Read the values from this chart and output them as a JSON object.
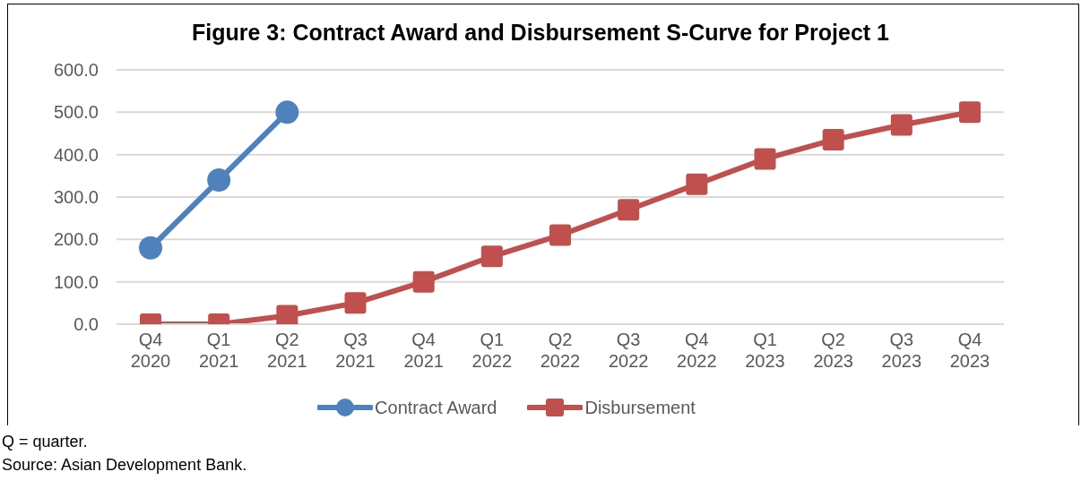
{
  "chart_data": {
    "type": "line",
    "title": "Figure 3: Contract Award and Disbursement S-Curve for Project 1",
    "categories": [
      "Q4\n2020",
      "Q1\n2021",
      "Q2\n2021",
      "Q3\n2021",
      "Q4\n2021",
      "Q1\n2022",
      "Q2\n2022",
      "Q3\n2022",
      "Q4\n2022",
      "Q1\n2023",
      "Q2\n2023",
      "Q3\n2023",
      "Q4\n2023"
    ],
    "series": [
      {
        "name": "Contract Award",
        "color": "#4f81bd",
        "marker": "circle",
        "values": [
          180,
          340,
          500,
          null,
          null,
          null,
          null,
          null,
          null,
          null,
          null,
          null,
          null
        ]
      },
      {
        "name": "Disbursement",
        "color": "#c0504d",
        "marker": "square",
        "values": [
          0,
          0,
          20,
          50,
          100,
          160,
          210,
          270,
          330,
          390,
          435,
          470,
          500
        ]
      }
    ],
    "ylim": [
      0,
      600
    ],
    "yticks": [
      {
        "value": 0,
        "label": "0.0"
      },
      {
        "value": 100,
        "label": "100.0"
      },
      {
        "value": 200,
        "label": "200.0"
      },
      {
        "value": 300,
        "label": "300.0"
      },
      {
        "value": 400,
        "label": "400.0"
      },
      {
        "value": 500,
        "label": "500.0"
      },
      {
        "value": 600,
        "label": "600.0"
      }
    ],
    "grid": "y",
    "legend": "bottom",
    "line_style": "solid",
    "annotations": [
      "Q = quarter.",
      "Source: Asian Development Bank."
    ]
  }
}
